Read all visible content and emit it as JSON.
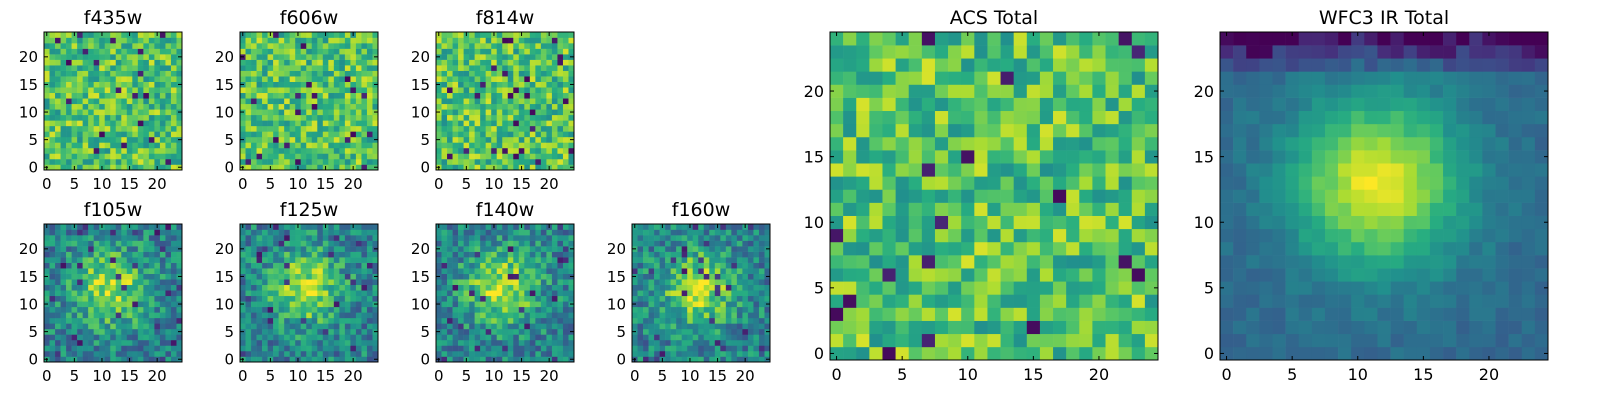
{
  "chart_data": [
    {
      "type": "heatmap",
      "title": "f435w",
      "cmap": "viridis",
      "texture": "noise",
      "xticks": [
        "0",
        "5",
        "10",
        "15",
        "20"
      ],
      "yticks": [
        "0",
        "5",
        "10",
        "15",
        "20"
      ],
      "xlim": [
        0,
        25
      ],
      "ylim": [
        0,
        25
      ],
      "grid": false
    },
    {
      "type": "heatmap",
      "title": "f606w",
      "cmap": "viridis",
      "texture": "noise",
      "xticks": [
        "0",
        "5",
        "10",
        "15",
        "20"
      ],
      "yticks": [
        "0",
        "5",
        "10",
        "15",
        "20"
      ],
      "xlim": [
        0,
        25
      ],
      "ylim": [
        0,
        25
      ],
      "grid": false
    },
    {
      "type": "heatmap",
      "title": "f814w",
      "cmap": "viridis",
      "texture": "noise",
      "xticks": [
        "0",
        "5",
        "10",
        "15",
        "20"
      ],
      "yticks": [
        "0",
        "5",
        "10",
        "15",
        "20"
      ],
      "xlim": [
        0,
        25
      ],
      "ylim": [
        0,
        25
      ],
      "grid": false
    },
    {
      "type": "heatmap",
      "title": "f105w",
      "cmap": "viridis",
      "texture": "source",
      "xticks": [
        "0",
        "5",
        "10",
        "15",
        "20"
      ],
      "yticks": [
        "0",
        "5",
        "10",
        "15",
        "20"
      ],
      "xlim": [
        0,
        25
      ],
      "ylim": [
        0,
        25
      ],
      "grid": false
    },
    {
      "type": "heatmap",
      "title": "f125w",
      "cmap": "viridis",
      "texture": "source",
      "xticks": [
        "0",
        "5",
        "10",
        "15",
        "20"
      ],
      "yticks": [
        "0",
        "5",
        "10",
        "15",
        "20"
      ],
      "xlim": [
        0,
        25
      ],
      "ylim": [
        0,
        25
      ],
      "grid": false
    },
    {
      "type": "heatmap",
      "title": "f140w",
      "cmap": "viridis",
      "texture": "source",
      "xticks": [
        "0",
        "5",
        "10",
        "15",
        "20"
      ],
      "yticks": [
        "0",
        "5",
        "10",
        "15",
        "20"
      ],
      "xlim": [
        0,
        25
      ],
      "ylim": [
        0,
        25
      ],
      "grid": false
    },
    {
      "type": "heatmap",
      "title": "f160w",
      "cmap": "viridis",
      "texture": "source",
      "xticks": [
        "0",
        "5",
        "10",
        "15",
        "20"
      ],
      "yticks": [
        "0",
        "5",
        "10",
        "15",
        "20"
      ],
      "xlim": [
        0,
        25
      ],
      "ylim": [
        0,
        25
      ],
      "grid": false
    },
    {
      "type": "heatmap",
      "title": "ACS Total",
      "cmap": "viridis",
      "texture": "noise",
      "xticks": [
        "0",
        "5",
        "10",
        "15",
        "20"
      ],
      "yticks": [
        "0",
        "5",
        "10",
        "15",
        "20"
      ],
      "xlim": [
        0,
        25
      ],
      "ylim": [
        0,
        25
      ],
      "grid": false
    },
    {
      "type": "heatmap",
      "title": "WFC3 IR Total",
      "cmap": "viridis",
      "texture": "smooth-source",
      "xticks": [
        "0",
        "5",
        "10",
        "15",
        "20"
      ],
      "yticks": [
        "0",
        "5",
        "10",
        "15",
        "20"
      ],
      "xlim": [
        0,
        25
      ],
      "ylim": [
        0,
        25
      ],
      "grid": false
    }
  ]
}
